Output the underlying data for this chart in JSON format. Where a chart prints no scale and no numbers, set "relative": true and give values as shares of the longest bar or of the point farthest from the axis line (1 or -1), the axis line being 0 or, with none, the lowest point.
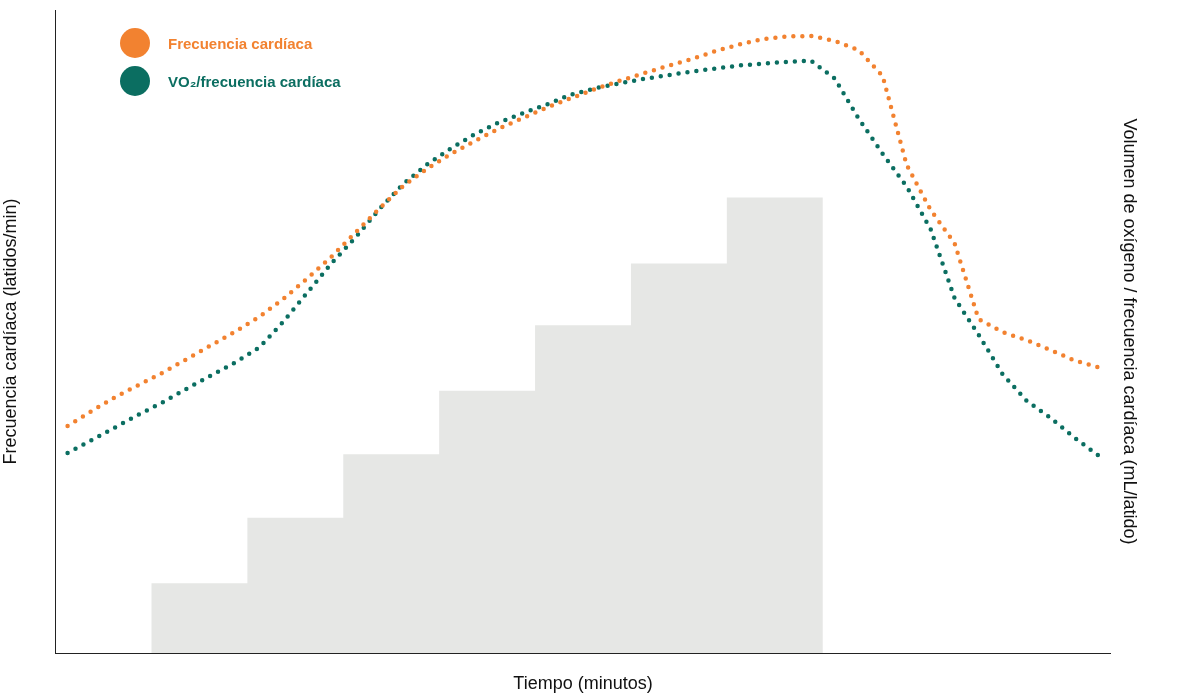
{
  "chart_data": {
    "type": "line",
    "xlabel": "Tiempo (minutos)",
    "ylabel": "Frecuencia cardíaca (latidos/min)",
    "y2label": "Volumen de oxígeno / frecuencia cardíaca (mL/latido)",
    "relative": true,
    "legend": "top left",
    "line_style": "dotted",
    "marker": "none",
    "categories": [
      null,
      null,
      null,
      null,
      null,
      null,
      null,
      null,
      null,
      null,
      null,
      null,
      null,
      null,
      null,
      null,
      null,
      null,
      null,
      null,
      null,
      null,
      null,
      null,
      null,
      null,
      null,
      null,
      null,
      null,
      null,
      null,
      null,
      null,
      null,
      null,
      null,
      null,
      null,
      null,
      null,
      null,
      null,
      null
    ],
    "series": [
      {
        "type": "area",
        "color": "#e6e7e5",
        "values": [
          0,
          0,
          0,
          0,
          0.113,
          0.113,
          0.113,
          0.113,
          0.219,
          0.219,
          0.219,
          0.219,
          0.322,
          0.322,
          0.322,
          0.322,
          0.425,
          0.425,
          0.425,
          0.425,
          0.531,
          0.531,
          0.531,
          0.531,
          0.631,
          0.631,
          0.631,
          0.631,
          0.738,
          0.738,
          0.738,
          0.738,
          0,
          0,
          0,
          0,
          0,
          0,
          0,
          0,
          0,
          0,
          0,
          0
        ]
      },
      {
        "name": "Frecuencia cardíaca",
        "color": "#f28230",
        "values": [
          0.368,
          0.392,
          0.415,
          0.435,
          0.455,
          0.477,
          0.499,
          0.521,
          0.545,
          0.574,
          0.607,
          0.642,
          0.681,
          0.72,
          0.757,
          0.785,
          0.809,
          0.83,
          0.85,
          0.867,
          0.884,
          0.899,
          0.914,
          0.927,
          0.939,
          0.951,
          0.962,
          0.975,
          0.986,
          0.995,
          0.999,
          1,
          0.992,
          0.977,
          0.935,
          0.791,
          0.718,
          0.664,
          0.541,
          0.52,
          0.507,
          0.491,
          0.474,
          0.463
        ]
      },
      {
        "name": "VO₂/frecuencia cardíaca",
        "color": "#0b6e61",
        "values": [
          0.324,
          0.345,
          0.366,
          0.387,
          0.407,
          0.429,
          0.45,
          0.471,
          0.495,
          0.537,
          0.584,
          0.631,
          0.673,
          0.719,
          0.76,
          0.792,
          0.818,
          0.841,
          0.86,
          0.875,
          0.889,
          0.905,
          0.915,
          0.923,
          0.93,
          0.936,
          0.942,
          0.947,
          0.952,
          0.955,
          0.958,
          0.96,
          0.931,
          0.866,
          0.809,
          0.756,
          0.687,
          0.575,
          0.516,
          0.452,
          0.409,
          0.381,
          0.349,
          0.32
        ]
      }
    ]
  }
}
